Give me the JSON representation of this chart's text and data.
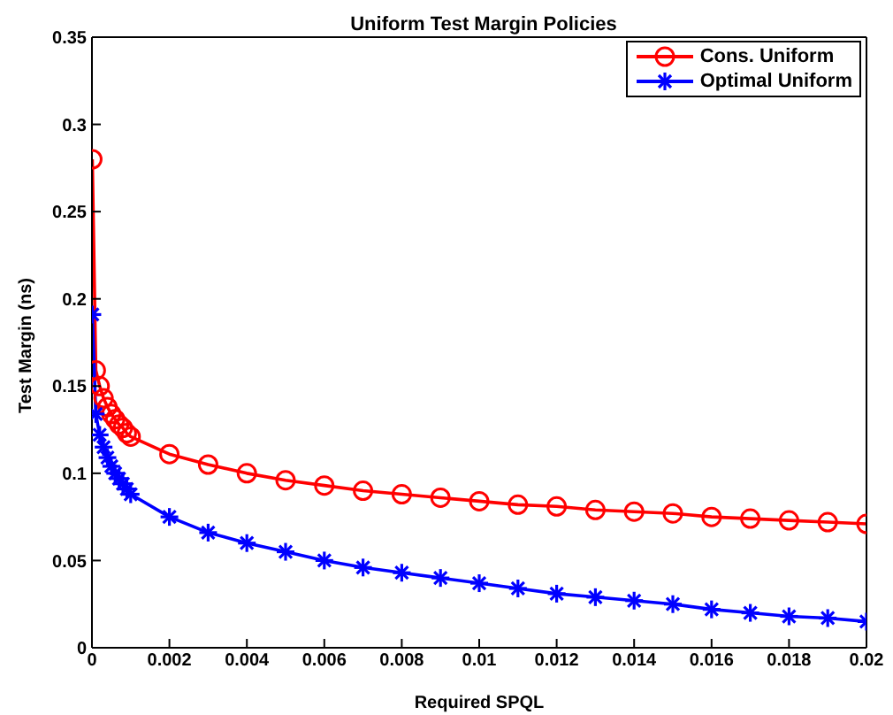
{
  "chart_data": {
    "type": "line",
    "title": "Uniform Test Margin Policies",
    "xlabel": "Required SPQL",
    "ylabel": "Test Margin (ns)",
    "xlim": [
      0,
      0.02
    ],
    "xticks": [
      0,
      0.002,
      0.004,
      0.006,
      0.008,
      0.01,
      0.012,
      0.014,
      0.016,
      0.018,
      0.02
    ],
    "ylim": [
      0,
      0.35
    ],
    "yticks": [
      0,
      0.05,
      0.1,
      0.15,
      0.2,
      0.25,
      0.3,
      0.35
    ],
    "grid": false,
    "legend": "top right",
    "line_style": "solid",
    "x": [
      1e-05,
      0.0001,
      0.0002,
      0.0003,
      0.0004,
      0.0005,
      0.0006,
      0.0007,
      0.0008,
      0.0009,
      0.001,
      0.002,
      0.003,
      0.004,
      0.005,
      0.006,
      0.007,
      0.008,
      0.009,
      0.01,
      0.011,
      0.012,
      0.013,
      0.014,
      0.015,
      0.016,
      0.017,
      0.018,
      0.019,
      0.02
    ],
    "series": [
      {
        "name": "Cons. Uniform",
        "color": "#ff0000",
        "marker": "circle",
        "values": [
          0.28,
          0.159,
          0.15,
          0.143,
          0.138,
          0.134,
          0.131,
          0.128,
          0.126,
          0.123,
          0.121,
          0.111,
          0.105,
          0.1,
          0.096,
          0.093,
          0.09,
          0.088,
          0.086,
          0.084,
          0.082,
          0.081,
          0.079,
          0.078,
          0.077,
          0.075,
          0.074,
          0.073,
          0.072,
          0.071
        ]
      },
      {
        "name": "Optimal Uniform",
        "color": "#0000ff",
        "marker": "cross",
        "values": [
          0.191,
          0.134,
          0.122,
          0.115,
          0.109,
          0.104,
          0.1,
          0.097,
          0.094,
          0.091,
          0.088,
          0.075,
          0.066,
          0.06,
          0.055,
          0.05,
          0.046,
          0.043,
          0.04,
          0.037,
          0.034,
          0.031,
          0.029,
          0.027,
          0.025,
          0.022,
          0.02,
          0.018,
          0.017,
          0.015
        ]
      }
    ]
  }
}
